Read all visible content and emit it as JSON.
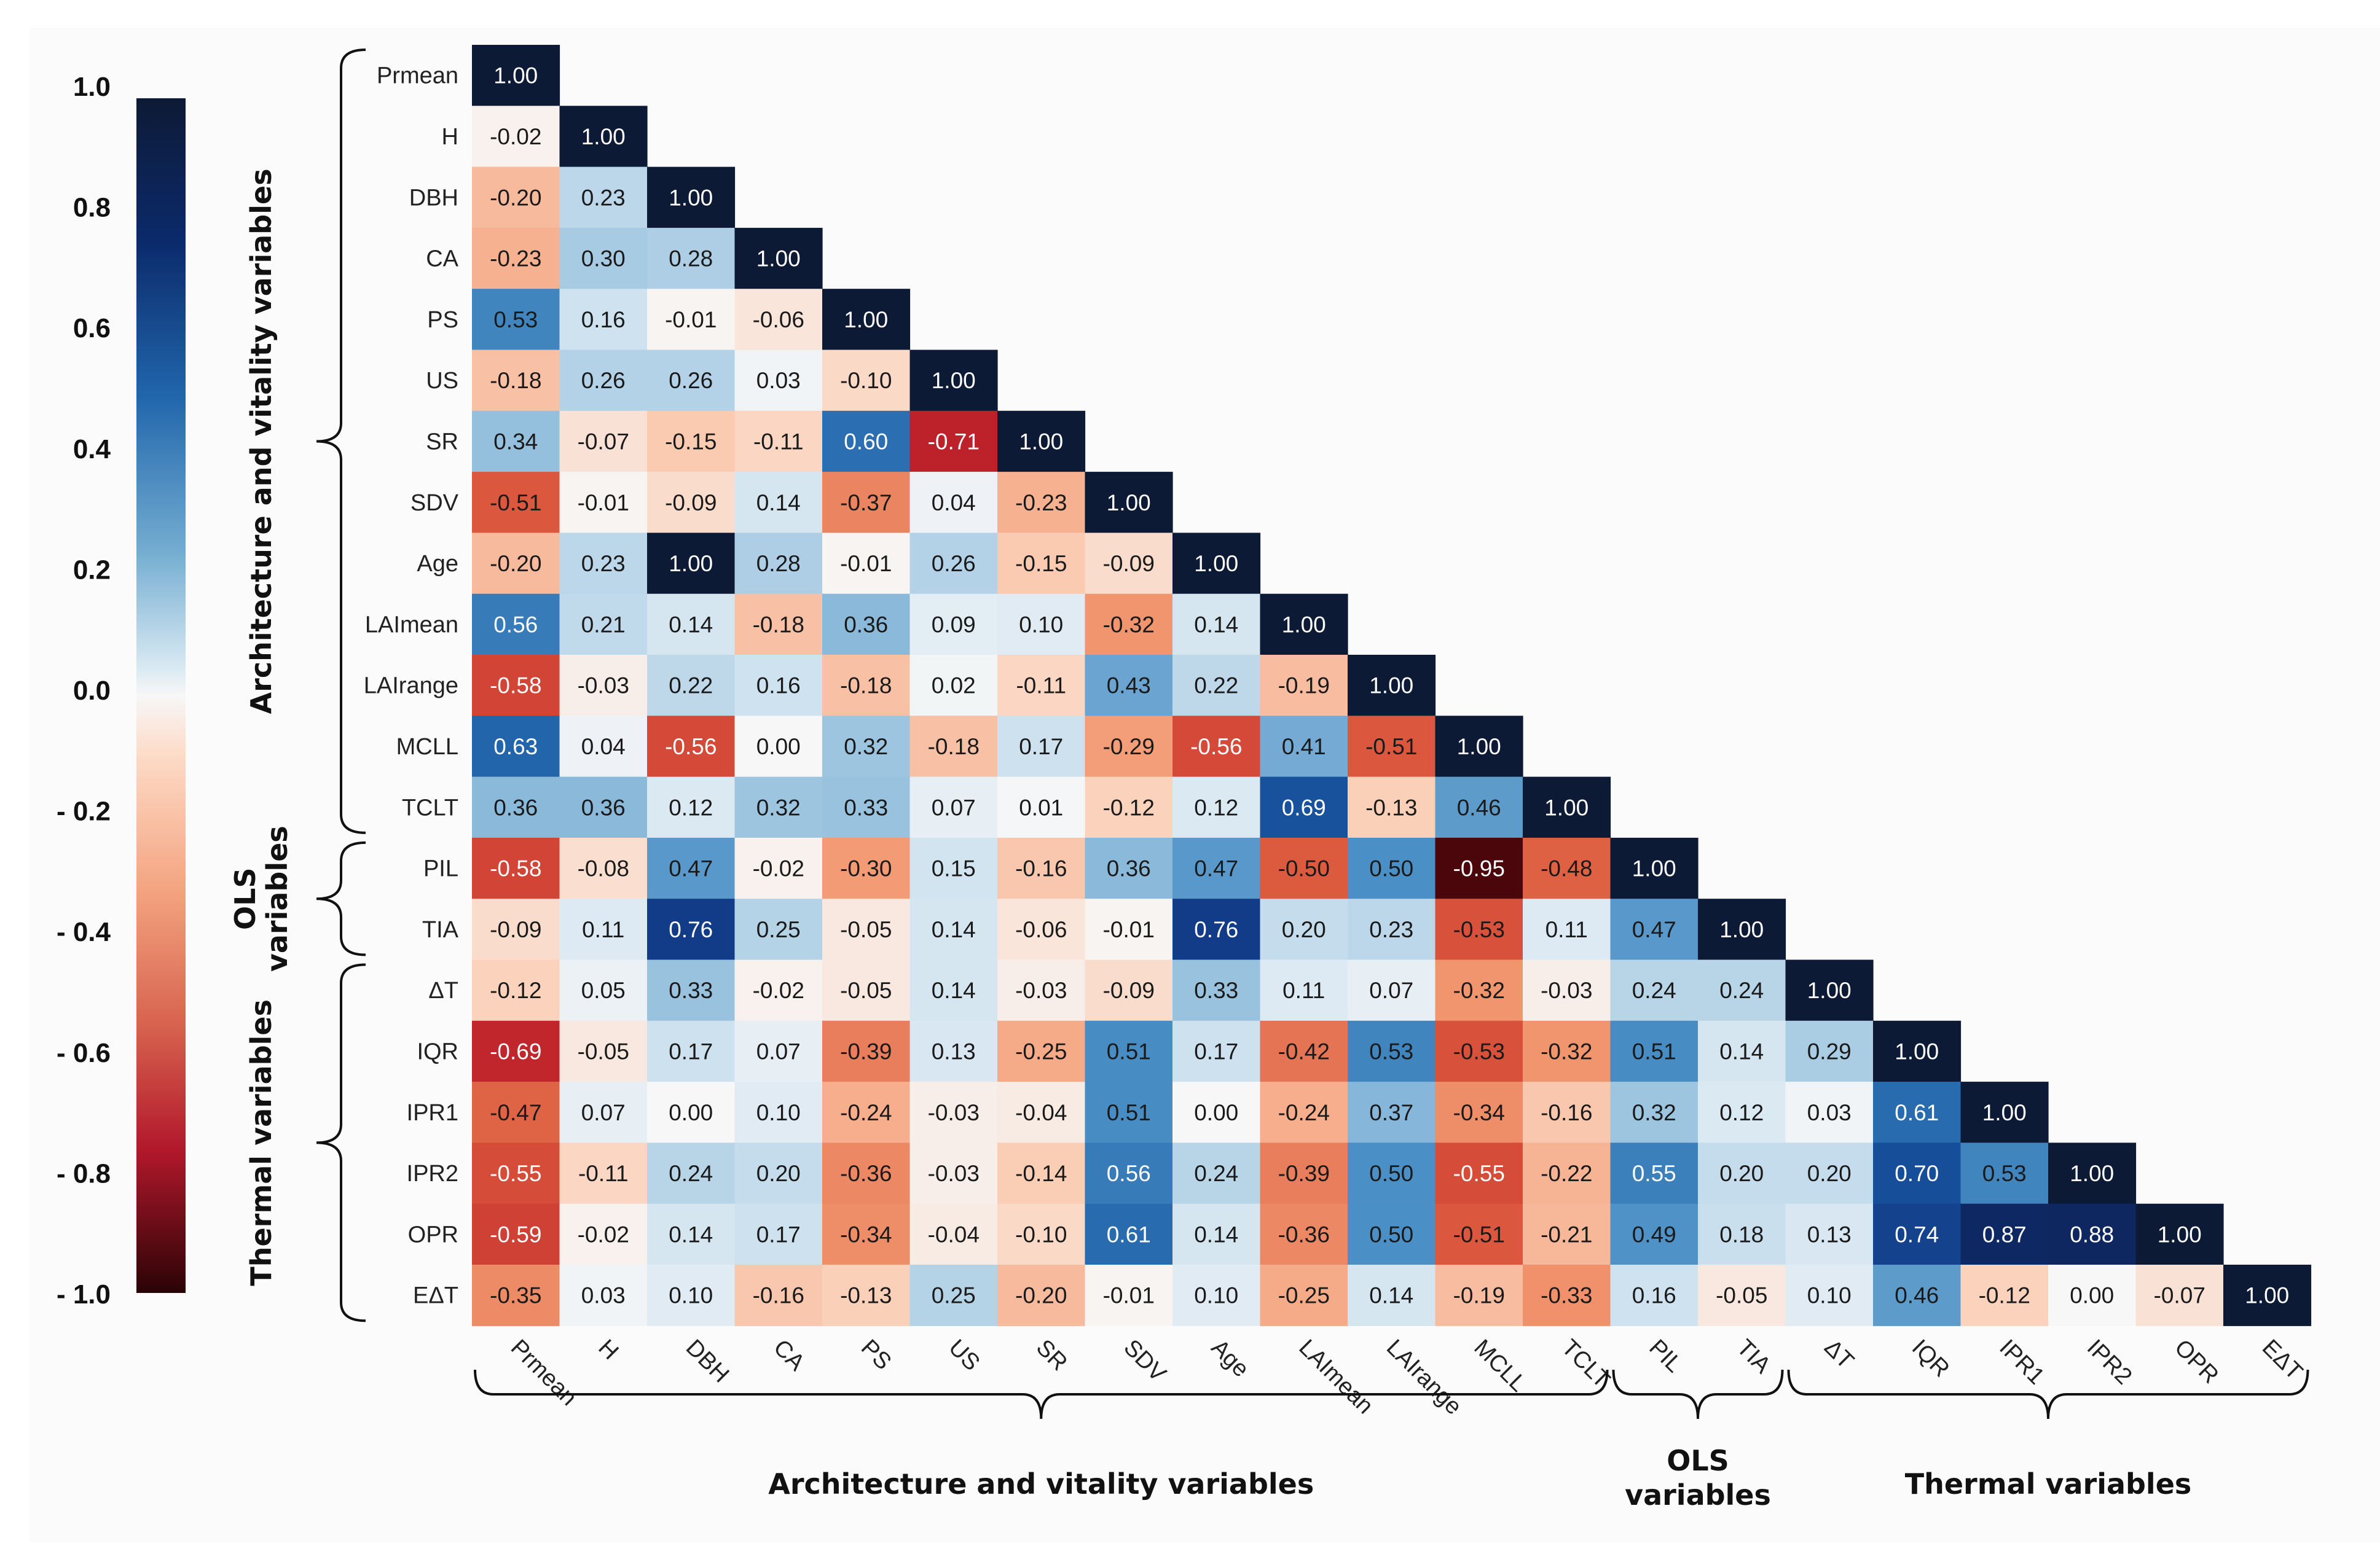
{
  "chart_data": {
    "type": "heatmap",
    "variables": [
      "Prmean",
      "H",
      "DBH",
      "CA",
      "PS",
      "US",
      "SR",
      "SDV",
      "Age",
      "LAImean",
      "LAIrange",
      "MCLL",
      "TCLT",
      "PIL",
      "TIA",
      "ΔT",
      "IQR",
      "IPR1",
      "IPR2",
      "OPR",
      "EΔT"
    ],
    "matrix": [
      [
        1.0
      ],
      [
        -0.02,
        1.0
      ],
      [
        -0.2,
        0.23,
        1.0
      ],
      [
        -0.23,
        0.3,
        0.28,
        1.0
      ],
      [
        0.53,
        0.16,
        -0.01,
        -0.06,
        1.0
      ],
      [
        -0.18,
        0.26,
        0.26,
        0.03,
        -0.1,
        1.0
      ],
      [
        0.34,
        -0.07,
        -0.15,
        -0.11,
        0.6,
        -0.71,
        1.0
      ],
      [
        -0.51,
        -0.01,
        -0.09,
        0.14,
        -0.37,
        0.04,
        -0.23,
        1.0
      ],
      [
        -0.2,
        0.23,
        1.0,
        0.28,
        -0.01,
        0.26,
        -0.15,
        -0.09,
        1.0
      ],
      [
        0.56,
        0.21,
        0.14,
        -0.18,
        0.36,
        0.09,
        0.1,
        -0.32,
        0.14,
        1.0
      ],
      [
        -0.58,
        -0.03,
        0.22,
        0.16,
        -0.18,
        0.02,
        -0.11,
        0.43,
        0.22,
        -0.19,
        1.0
      ],
      [
        0.63,
        0.04,
        -0.56,
        0.0,
        0.32,
        -0.18,
        0.17,
        -0.29,
        -0.56,
        0.41,
        -0.51,
        1.0
      ],
      [
        0.36,
        0.36,
        0.12,
        0.32,
        0.33,
        0.07,
        0.01,
        -0.12,
        0.12,
        0.69,
        -0.13,
        0.46,
        1.0
      ],
      [
        -0.58,
        -0.08,
        0.47,
        -0.02,
        -0.3,
        0.15,
        -0.16,
        0.36,
        0.47,
        -0.5,
        0.5,
        -0.95,
        -0.48,
        1.0
      ],
      [
        -0.09,
        0.11,
        0.76,
        0.25,
        -0.05,
        0.14,
        -0.06,
        -0.01,
        0.76,
        0.2,
        0.23,
        -0.53,
        0.11,
        0.47,
        1.0
      ],
      [
        -0.12,
        0.05,
        0.33,
        -0.02,
        -0.05,
        0.14,
        -0.03,
        -0.09,
        0.33,
        0.11,
        0.07,
        -0.32,
        -0.03,
        0.24,
        0.24,
        1.0
      ],
      [
        -0.69,
        -0.05,
        0.17,
        0.07,
        -0.39,
        0.13,
        -0.25,
        0.51,
        0.17,
        -0.42,
        0.53,
        -0.53,
        -0.32,
        0.51,
        0.14,
        0.29,
        1.0
      ],
      [
        -0.47,
        0.07,
        0.0,
        0.1,
        -0.24,
        -0.03,
        -0.04,
        0.51,
        0.0,
        -0.24,
        0.37,
        -0.34,
        -0.16,
        0.32,
        0.12,
        0.03,
        0.61,
        1.0
      ],
      [
        -0.55,
        -0.11,
        0.24,
        0.2,
        -0.36,
        -0.03,
        -0.14,
        0.56,
        0.24,
        -0.39,
        0.5,
        -0.55,
        -0.22,
        0.55,
        0.2,
        0.2,
        0.7,
        0.53,
        1.0
      ],
      [
        -0.59,
        -0.02,
        0.14,
        0.17,
        -0.34,
        -0.04,
        -0.1,
        0.61,
        0.14,
        -0.36,
        0.5,
        -0.51,
        -0.21,
        0.49,
        0.18,
        0.13,
        0.74,
        0.87,
        0.88,
        1.0
      ],
      [
        -0.35,
        0.03,
        0.1,
        -0.16,
        -0.13,
        0.25,
        -0.2,
        -0.01,
        0.1,
        -0.25,
        0.14,
        -0.19,
        -0.33,
        0.16,
        -0.05,
        0.1,
        0.46,
        -0.12,
        0.0,
        -0.07,
        1.0
      ]
    ],
    "colorbar": {
      "range": [
        -1.0,
        1.0
      ],
      "tick_labels": [
        "1.0",
        "0.8",
        "0.6",
        "0.4",
        "0.2",
        "0.0",
        "- 0.2",
        "- 0.4",
        "- 0.6",
        "- 0.8",
        "- 1.0"
      ],
      "colors": {
        "negative_extreme": "#2a0306",
        "negative": "#b2182b",
        "neutral": "#f7f7f7",
        "positive": "#2166ac",
        "positive_extreme": "#0d1a35"
      }
    },
    "row_groups": [
      {
        "label": "Architecture and vitality variables",
        "lines": [
          "Architecture and vitality variables"
        ],
        "from": 0,
        "to": 12
      },
      {
        "label": "OLS variables",
        "lines": [
          "OLS",
          "variables"
        ],
        "from": 13,
        "to": 14
      },
      {
        "label": "Thermal variables",
        "lines": [
          "Thermal variables"
        ],
        "from": 15,
        "to": 20
      }
    ],
    "col_groups": [
      {
        "label": "Architecture and vitality variables",
        "lines": [
          "Architecture and vitality variables"
        ],
        "from": 0,
        "to": 12
      },
      {
        "label": "OLS variables",
        "lines": [
          "OLS",
          "variables"
        ],
        "from": 13,
        "to": 14
      },
      {
        "label": "Thermal variables",
        "lines": [
          "Thermal variables"
        ],
        "from": 15,
        "to": 20
      }
    ]
  }
}
